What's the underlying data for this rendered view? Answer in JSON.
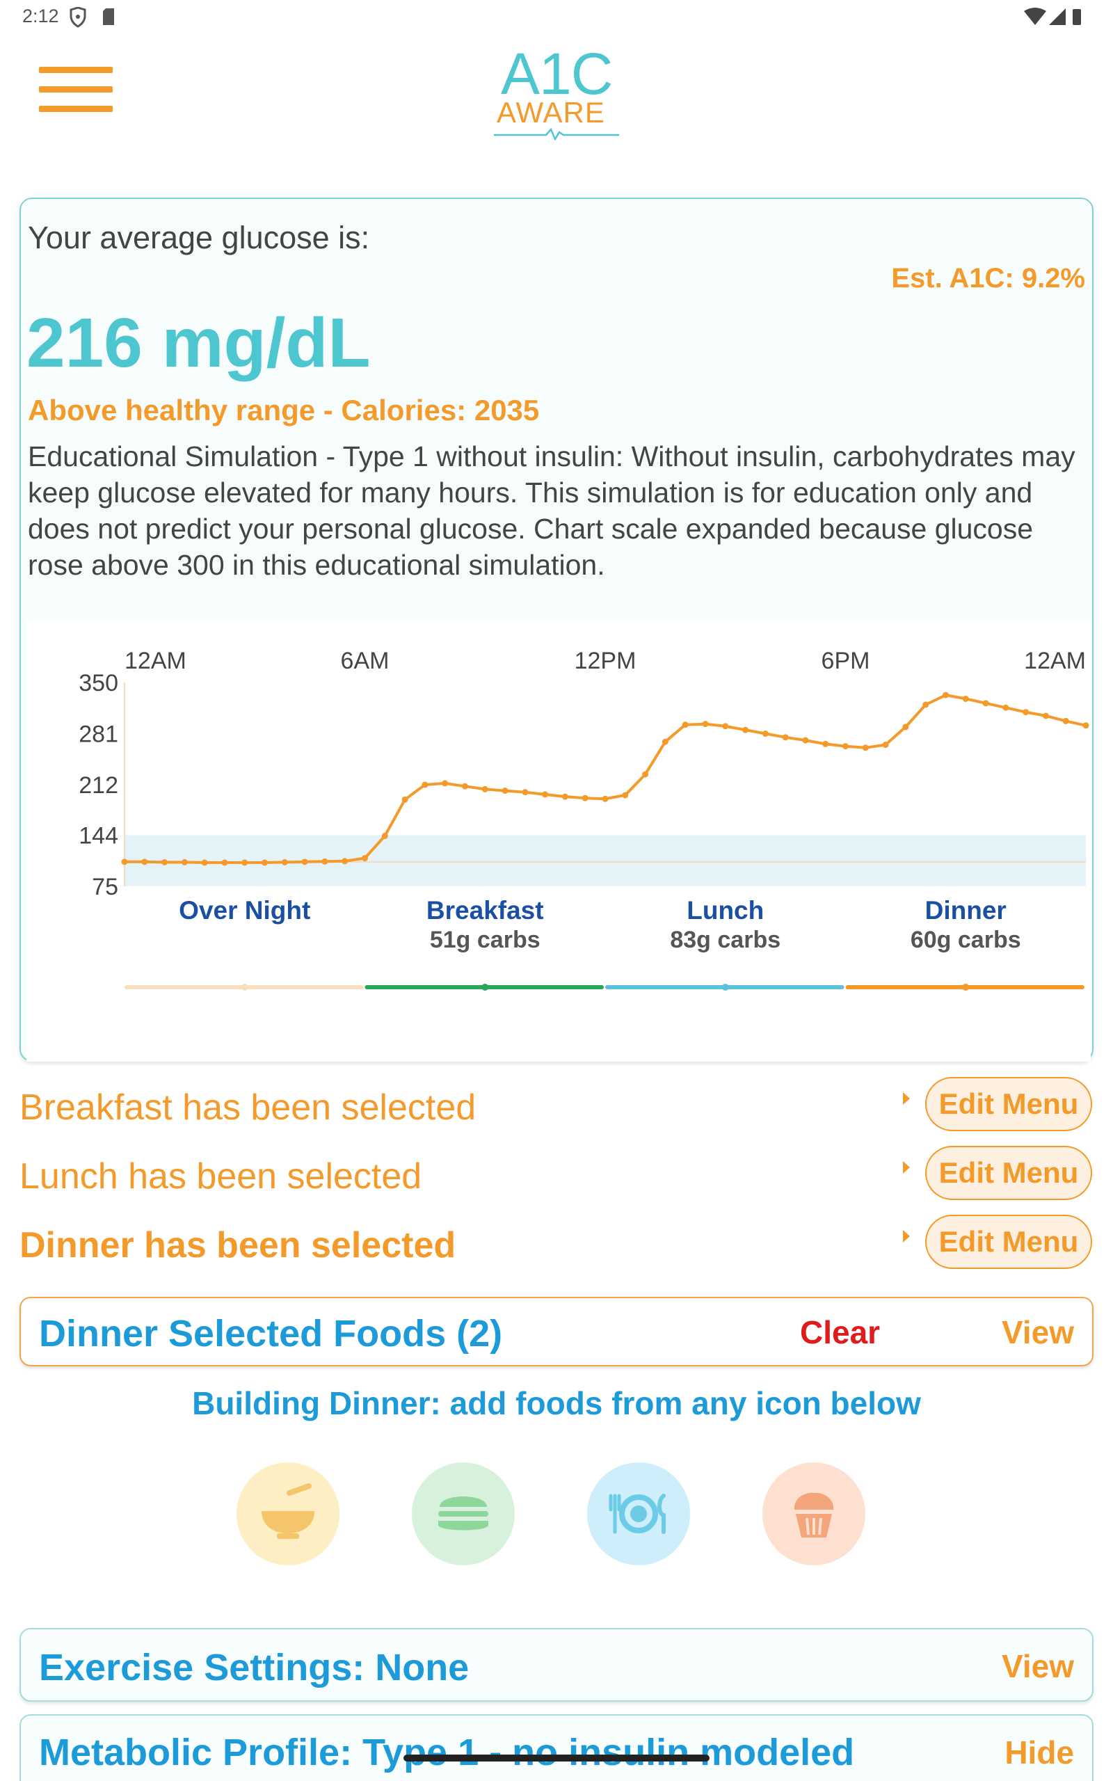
{
  "status_bar": {
    "time": "2:12"
  },
  "header": {
    "logo_top": "A1C",
    "logo_bottom": "AWARE",
    "menu_icon": "hamburger-menu-icon"
  },
  "glucose_card": {
    "avg_label": "Your average glucose is:",
    "est_a1c": "Est. A1C: 9.2%",
    "value": "216 mg/dL",
    "range_note": "Above healthy range - Calories: 2035",
    "simulation_text": "Educational Simulation - Type 1 without insulin: Without insulin, carbohydrates may keep glucose elevated for many hours. This simulation is for education only and does not predict your personal glucose. Chart scale expanded because glucose rose above 300 in this educational simulation."
  },
  "chart_data": {
    "type": "line",
    "x_tick_labels": [
      "12AM",
      "6AM",
      "12PM",
      "6PM",
      "12AM"
    ],
    "y_tick_labels": [
      "350",
      "281",
      "212",
      "144",
      "75"
    ],
    "ylim": [
      75,
      350
    ],
    "xlim_hours": [
      0,
      24
    ],
    "healthy_band": [
      70,
      144
    ],
    "reference_line": 108,
    "grid": false,
    "series": [
      {
        "color": "#f39a2b",
        "points": [
          [
            0,
            108
          ],
          [
            0.5,
            108
          ],
          [
            1,
            107.5
          ],
          [
            1.5,
            107.5
          ],
          [
            2,
            107
          ],
          [
            2.5,
            107
          ],
          [
            3,
            107
          ],
          [
            3.5,
            107
          ],
          [
            4,
            107.5
          ],
          [
            4.5,
            108
          ],
          [
            5,
            108.5
          ],
          [
            5.5,
            109
          ],
          [
            6,
            113
          ],
          [
            6.5,
            143
          ],
          [
            7,
            192
          ],
          [
            7.5,
            212
          ],
          [
            8,
            214
          ],
          [
            8.5,
            210
          ],
          [
            9,
            206
          ],
          [
            9.5,
            204
          ],
          [
            10,
            202
          ],
          [
            10.5,
            199
          ],
          [
            11,
            196
          ],
          [
            11.5,
            194
          ],
          [
            12,
            193
          ],
          [
            12.5,
            198
          ],
          [
            13,
            226
          ],
          [
            13.5,
            270
          ],
          [
            14,
            293
          ],
          [
            14.5,
            294
          ],
          [
            15,
            291
          ],
          [
            15.5,
            286
          ],
          [
            16,
            281
          ],
          [
            16.5,
            276
          ],
          [
            17,
            272
          ],
          [
            17.5,
            267
          ],
          [
            18,
            264
          ],
          [
            18.5,
            262
          ],
          [
            19,
            266
          ],
          [
            19.5,
            290
          ],
          [
            20,
            320
          ],
          [
            20.5,
            333
          ],
          [
            21,
            328
          ],
          [
            21.5,
            322
          ],
          [
            22,
            316
          ],
          [
            22.5,
            310
          ],
          [
            23,
            305
          ],
          [
            23.5,
            298
          ],
          [
            24,
            292
          ]
        ]
      }
    ],
    "meal_periods": [
      {
        "label": "Over Night",
        "carbs": ""
      },
      {
        "label": "Breakfast",
        "carbs": "51g carbs"
      },
      {
        "label": "Lunch",
        "carbs": "83g carbs"
      },
      {
        "label": "Dinner",
        "carbs": "60g carbs"
      }
    ],
    "period_bar_colors": [
      "#f6dfc0",
      "#2aa65a",
      "#5cc2dc",
      "#f39a2b"
    ]
  },
  "meals": [
    {
      "text": "Breakfast has been selected",
      "button": "Edit Menu"
    },
    {
      "text": "Lunch has been selected",
      "button": "Edit Menu"
    },
    {
      "text": "Dinner has been selected",
      "button": "Edit Menu"
    }
  ],
  "selected_foods": {
    "title": "Dinner Selected Foods (2)",
    "clear": "Clear",
    "view": "View"
  },
  "building_note": "Building Dinner: add foods from any icon below",
  "food_icons": [
    "bowl-icon",
    "burger-icon",
    "plate-icon",
    "cupcake-icon"
  ],
  "colors": {
    "accent_orange": "#f39a2b",
    "accent_teal": "#4ec6d0",
    "accent_blue": "#1d9ad8",
    "danger": "#e01b1b"
  },
  "exercise": {
    "title": "Exercise Settings: None",
    "view": "View"
  },
  "metabolic": {
    "title": "Metabolic Profile: Type 1 - no insulin modeled",
    "hide": "Hide"
  }
}
